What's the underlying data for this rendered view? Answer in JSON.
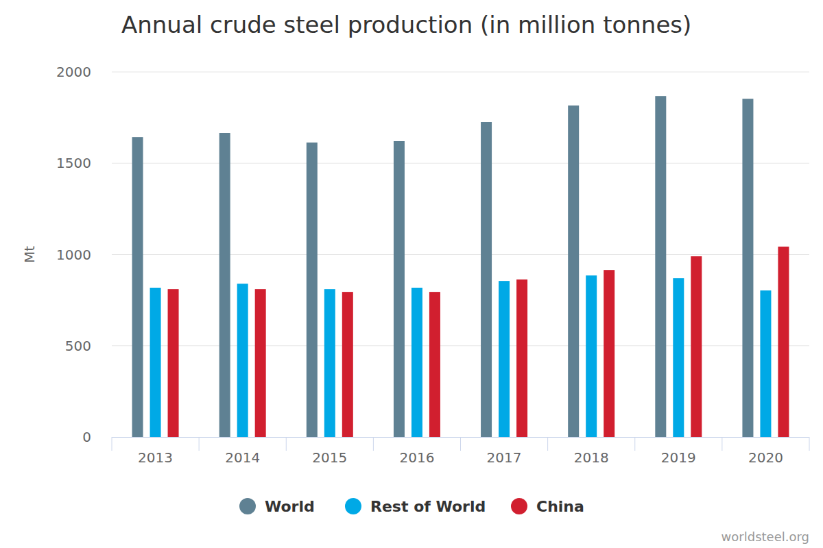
{
  "chart_data": {
    "type": "bar",
    "title": "Annual crude steel production (in million tonnes)",
    "y_label": "Mt",
    "source": "worldsteel.org",
    "categories": [
      "2013",
      "2014",
      "2015",
      "2016",
      "2017",
      "2018",
      "2019",
      "2020"
    ],
    "series": [
      {
        "name": "World",
        "color": "#5f8193",
        "values": [
          1643,
          1666,
          1613,
          1621,
          1726,
          1816,
          1868,
          1853
        ]
      },
      {
        "name": "Rest of World",
        "color": "#00a9e6",
        "values": [
          818,
          840,
          810,
          818,
          855,
          885,
          870,
          803
        ]
      },
      {
        "name": "China",
        "color": "#d11f2f",
        "values": [
          810,
          810,
          795,
          795,
          863,
          915,
          990,
          1043
        ]
      }
    ],
    "ylim": [
      0,
      2000
    ],
    "yticks": [
      0,
      500,
      1000,
      1500,
      2000
    ],
    "grid": true,
    "legend": "bottom"
  }
}
